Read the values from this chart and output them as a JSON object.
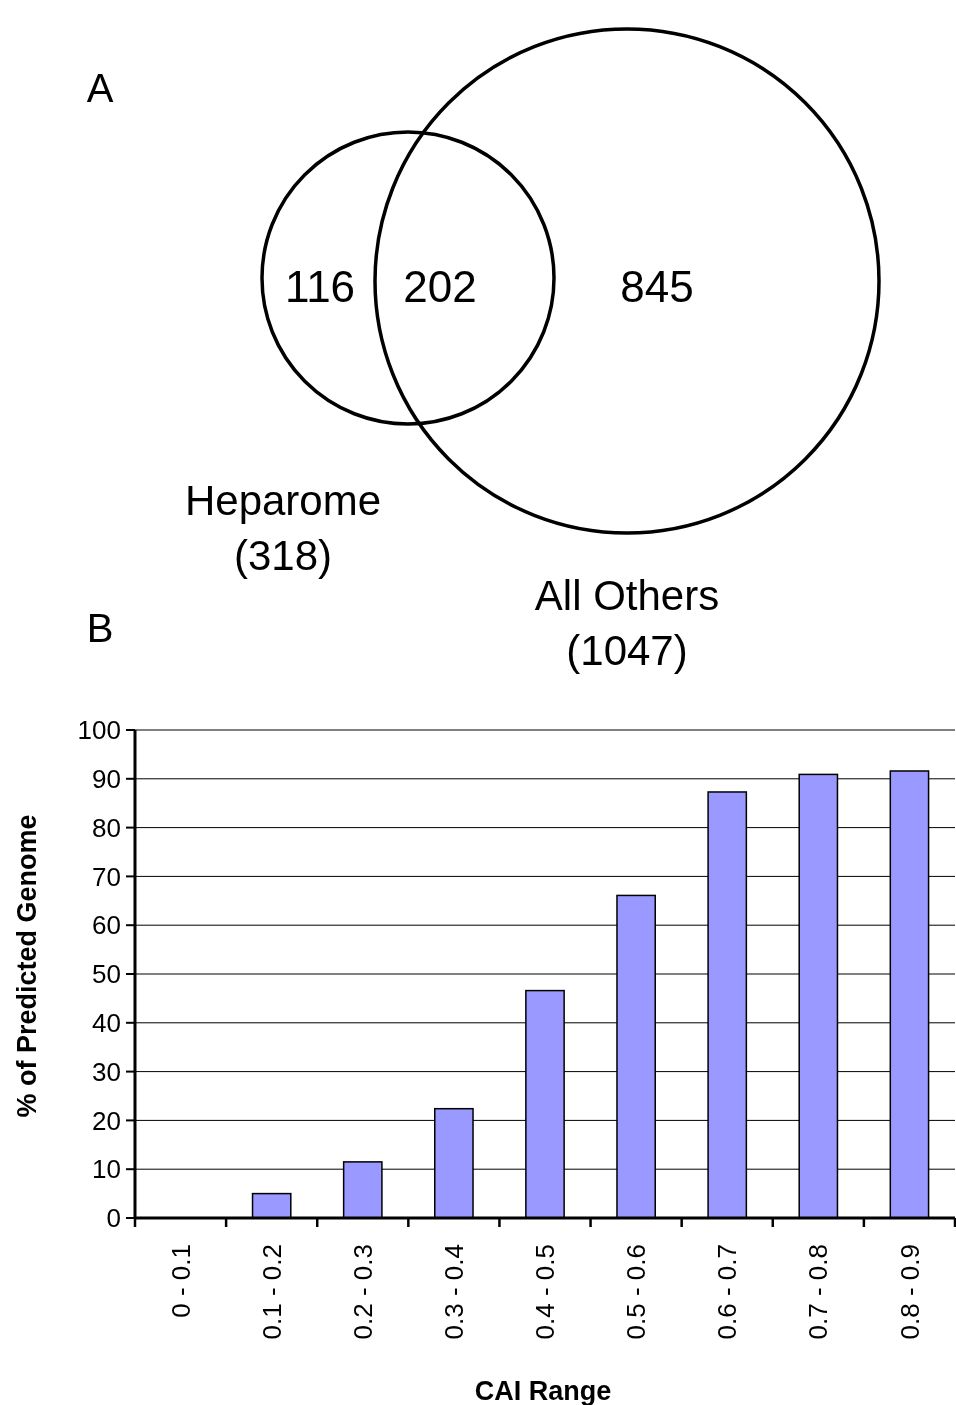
{
  "chart_data": [
    {
      "type": "other",
      "title": "A",
      "categories": [
        null,
        null,
        null
      ],
      "values": [
        116,
        202,
        845
      ],
      "data_labels": true,
      "annotations": [
        "Heparome (318)",
        "All Others (1047)"
      ]
    },
    {
      "type": "bar",
      "title": "B",
      "categories": [
        "0 - 0.1",
        "0.1 - 0.2",
        "0.2 - 0.3",
        "0.3 - 0.4",
        "0.4 - 0.5",
        "0.5 - 0.6",
        "0.6 - 0.7",
        "0.7 - 0.8",
        "0.8 - 0.9"
      ],
      "values": [
        0,
        5.0,
        11.5,
        22.4,
        46.6,
        66.1,
        87.3,
        90.9,
        91.6
      ],
      "color": "#9999ff",
      "ylim": [
        0,
        100
      ],
      "yticks": [
        0,
        10,
        20,
        30,
        40,
        50,
        60,
        70,
        80,
        90,
        100
      ],
      "grid": "y",
      "xlabel": "CAI Range",
      "ylabel": "% of Predicted Genome"
    }
  ]
}
